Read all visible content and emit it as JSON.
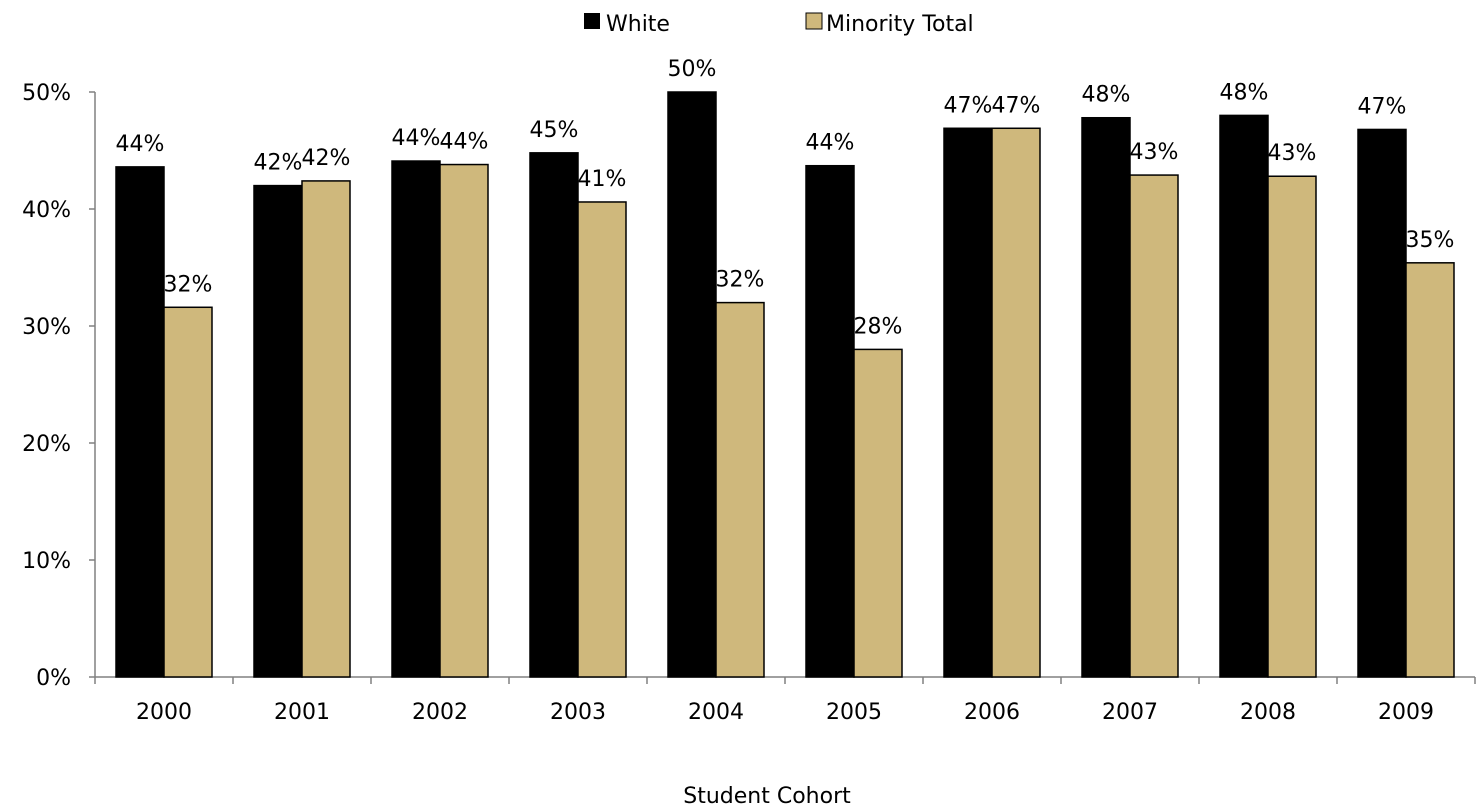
{
  "chart_data": {
    "type": "bar",
    "title": "",
    "xlabel": "Student Cohort",
    "ylabel": "",
    "categories": [
      "2000",
      "2001",
      "2002",
      "2003",
      "2004",
      "2005",
      "2006",
      "2007",
      "2008",
      "2009"
    ],
    "ylim": [
      0,
      50
    ],
    "yticks": [
      "0%",
      "10%",
      "20%",
      "30%",
      "40%",
      "50%"
    ],
    "grid": false,
    "legend_position": "top",
    "series": [
      {
        "name": "White",
        "color": "#000000",
        "values": [
          43.6,
          42.0,
          44.1,
          44.8,
          50.0,
          43.7,
          46.9,
          47.8,
          48.0,
          46.8
        ],
        "labels": [
          "44%",
          "42%",
          "44%",
          "45%",
          "50%",
          "44%",
          "47%",
          "48%",
          "48%",
          "47%"
        ]
      },
      {
        "name": "Minority Total",
        "color": "#cfb87c",
        "values": [
          31.6,
          42.4,
          43.8,
          40.6,
          32.0,
          28.0,
          46.9,
          42.9,
          42.8,
          35.4
        ],
        "labels": [
          "32%",
          "42%",
          "44%",
          "41%",
          "32%",
          "28%",
          "47%",
          "43%",
          "43%",
          "35%"
        ]
      }
    ]
  }
}
